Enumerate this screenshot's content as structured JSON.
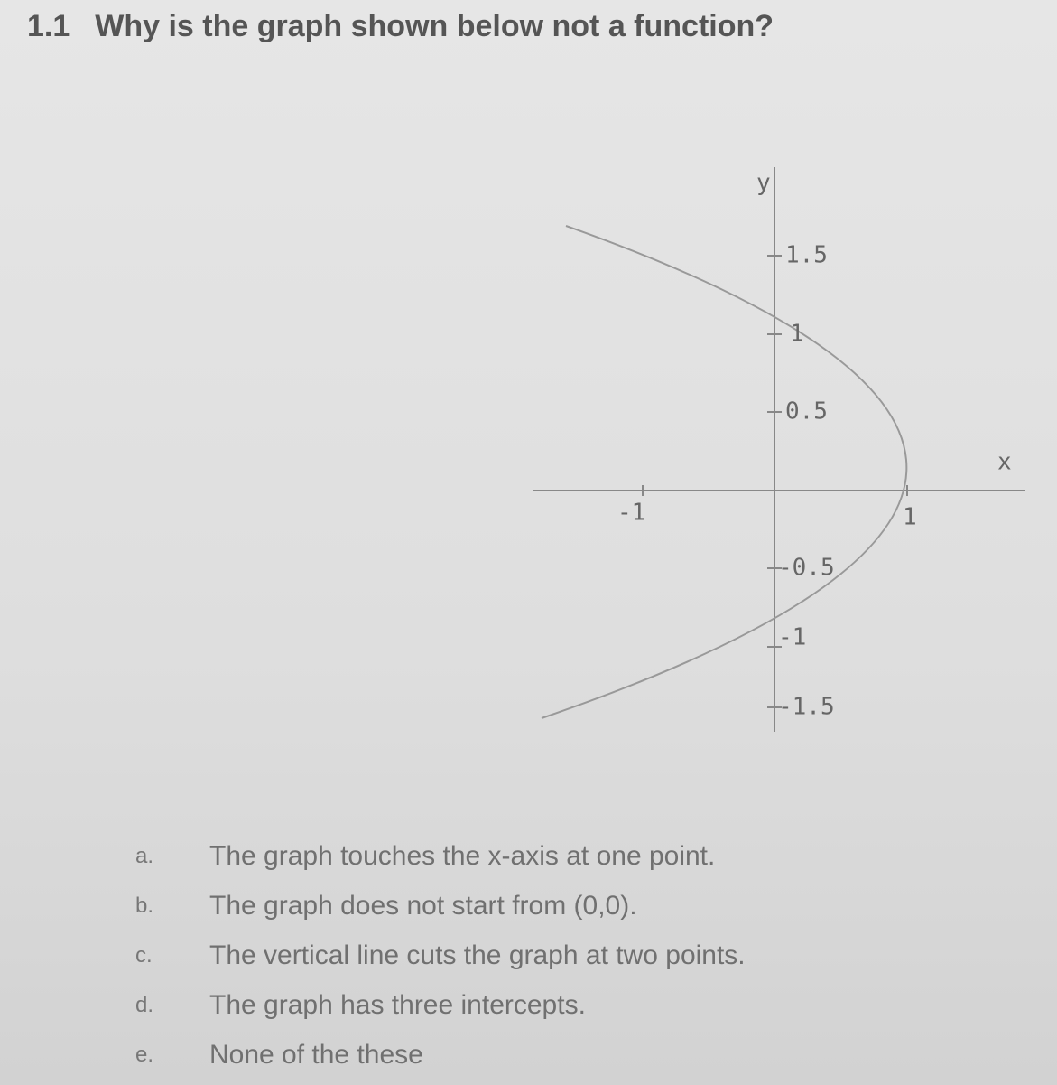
{
  "question": {
    "number": "1.1",
    "text": "Why is the graph shown below not a function?"
  },
  "graph": {
    "y_label": "y",
    "x_label": "x",
    "y_ticks": [
      "1.5",
      "1",
      "0.5",
      "-0.5",
      "-1",
      "-1.5"
    ],
    "x_ticks": [
      "-1",
      "1"
    ]
  },
  "options": [
    {
      "letter": "a.",
      "text": "The graph touches the x-axis at one point."
    },
    {
      "letter": "b.",
      "text": "The graph does not start from (0,0)."
    },
    {
      "letter": "c.",
      "text": "The vertical line cuts the graph at two points."
    },
    {
      "letter": "d.",
      "text": "The graph has three intercepts."
    },
    {
      "letter": "e.",
      "text": "None of the these"
    }
  ]
}
